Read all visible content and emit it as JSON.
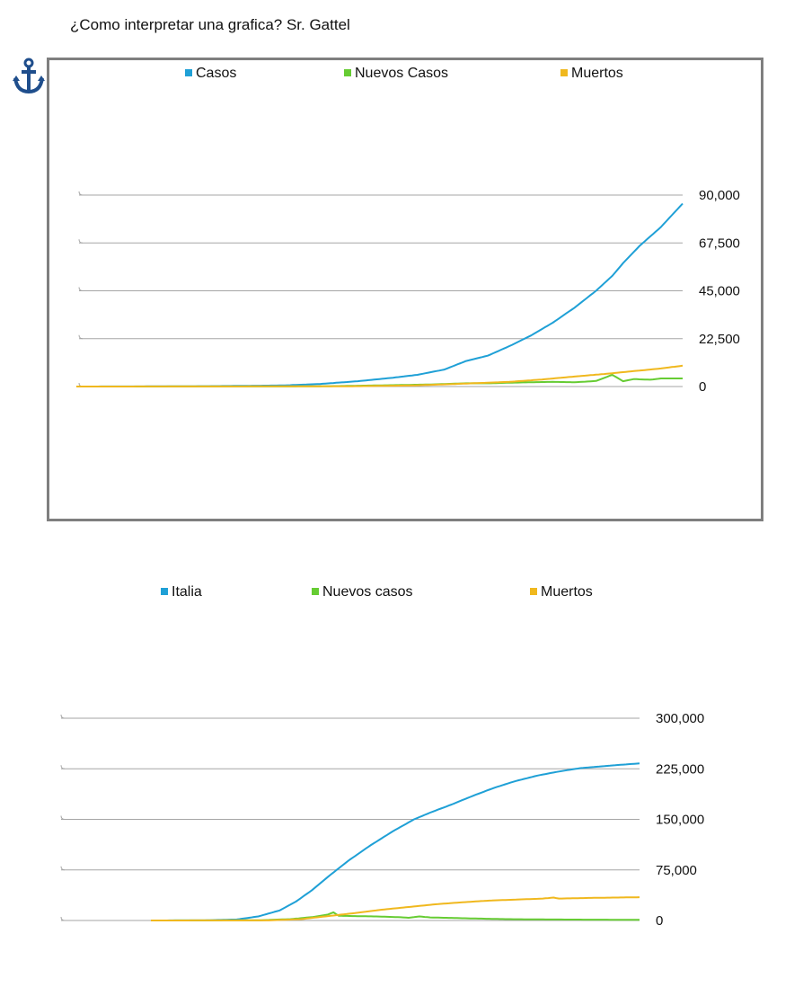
{
  "page_title": "¿Como interpretar una grafica? Sr. Gattel",
  "icon": "anchor-icon",
  "colors": {
    "blue": "#1fa0d6",
    "green": "#66cc33",
    "yellow": "#f0b81e",
    "grid": "#a6a6a6",
    "frame": "#7f7f7f"
  },
  "chart_data": [
    {
      "type": "line",
      "legend": [
        "Casos",
        "Nuevos Casos",
        "Muertos"
      ],
      "legend_position": "top",
      "y_ticks": [
        "90,000",
        "67,500",
        "45,000",
        "22,500",
        "0"
      ],
      "y_tick_values": [
        90000,
        67500,
        45000,
        22500,
        0
      ],
      "ylim": [
        0,
        90000
      ],
      "x_points": 100,
      "grid": true,
      "series": [
        {
          "name": "Casos",
          "color": "#1fa0d6",
          "keypoints": [
            [
              0,
              0
            ],
            [
              20,
              100
            ],
            [
              30,
              300
            ],
            [
              38,
              500
            ],
            [
              45,
              1200
            ],
            [
              52,
              2500
            ],
            [
              58,
              4000
            ],
            [
              63,
              5500
            ],
            [
              68,
              8000
            ],
            [
              72,
              12000
            ],
            [
              76,
              14500
            ],
            [
              80,
              19000
            ],
            [
              84,
              24000
            ],
            [
              88,
              30000
            ],
            [
              92,
              37000
            ],
            [
              96,
              45000
            ],
            [
              99,
              52000
            ],
            [
              101,
              58000
            ],
            [
              104,
              66000
            ],
            [
              108,
              75000
            ],
            [
              112,
              86000
            ]
          ]
        },
        {
          "name": "Nuevos Casos",
          "color": "#66cc33",
          "keypoints": [
            [
              0,
              0
            ],
            [
              40,
              50
            ],
            [
              48,
              200
            ],
            [
              55,
              500
            ],
            [
              60,
              700
            ],
            [
              66,
              1000
            ],
            [
              72,
              1500
            ],
            [
              76,
              1500
            ],
            [
              80,
              1800
            ],
            [
              84,
              2000
            ],
            [
              88,
              2200
            ],
            [
              92,
              2000
            ],
            [
              96,
              2600
            ],
            [
              99,
              5500
            ],
            [
              101,
              2500
            ],
            [
              103,
              3500
            ],
            [
              106,
              3200
            ],
            [
              108,
              3800
            ],
            [
              112,
              3800
            ]
          ]
        },
        {
          "name": "Muertos",
          "color": "#f0b81e",
          "keypoints": [
            [
              0,
              0
            ],
            [
              50,
              100
            ],
            [
              62,
              500
            ],
            [
              70,
              1200
            ],
            [
              80,
              2200
            ],
            [
              86,
              3300
            ],
            [
              92,
              4700
            ],
            [
              98,
              6000
            ],
            [
              104,
              7500
            ],
            [
              108,
              8500
            ],
            [
              112,
              9800
            ]
          ]
        }
      ]
    },
    {
      "type": "line",
      "legend": [
        "Italia",
        "Nuevos casos",
        "Muertos"
      ],
      "legend_position": "top",
      "y_ticks": [
        "300,000",
        "225,000",
        "150,000",
        "75,000",
        "0"
      ],
      "y_tick_values": [
        300000,
        225000,
        150000,
        75000,
        0
      ],
      "ylim": [
        0,
        300000
      ],
      "grid": true,
      "series": [
        {
          "name": "Italia",
          "color": "#1fa0d6",
          "keypoints": [
            [
              0,
              0
            ],
            [
              10,
              200
            ],
            [
              16,
              1500
            ],
            [
              20,
              6000
            ],
            [
              24,
              15000
            ],
            [
              27,
              28000
            ],
            [
              30,
              45000
            ],
            [
              33,
              65000
            ],
            [
              37,
              90000
            ],
            [
              41,
              112000
            ],
            [
              45,
              132000
            ],
            [
              49,
              150000
            ],
            [
              52,
              160000
            ],
            [
              56,
              172000
            ],
            [
              60,
              185000
            ],
            [
              64,
              197000
            ],
            [
              68,
              207000
            ],
            [
              72,
              215000
            ],
            [
              76,
              221000
            ],
            [
              80,
              226000
            ],
            [
              86,
              230000
            ],
            [
              91,
              233000
            ]
          ]
        },
        {
          "name": "Nuevos casos",
          "color": "#66cc33",
          "keypoints": [
            [
              0,
              0
            ],
            [
              20,
              300
            ],
            [
              26,
              2000
            ],
            [
              30,
              5000
            ],
            [
              33,
              9000
            ],
            [
              34,
              12000
            ],
            [
              35,
              7000
            ],
            [
              38,
              6500
            ],
            [
              42,
              6000
            ],
            [
              46,
              5000
            ],
            [
              48,
              4000
            ],
            [
              50,
              6000
            ],
            [
              52,
              4500
            ],
            [
              56,
              3800
            ],
            [
              60,
              3000
            ],
            [
              66,
              2000
            ],
            [
              74,
              1500
            ],
            [
              82,
              1200
            ],
            [
              91,
              1000
            ]
          ]
        },
        {
          "name": "Muertos",
          "color": "#f0b81e",
          "keypoints": [
            [
              0,
              0
            ],
            [
              22,
              200
            ],
            [
              28,
              2000
            ],
            [
              33,
              6500
            ],
            [
              38,
              11000
            ],
            [
              43,
              16000
            ],
            [
              48,
              20000
            ],
            [
              53,
              24000
            ],
            [
              58,
              27000
            ],
            [
              63,
              29500
            ],
            [
              68,
              31000
            ],
            [
              73,
              32500
            ],
            [
              75,
              34000
            ],
            [
              76,
              32500
            ],
            [
              82,
              33500
            ],
            [
              91,
              34500
            ]
          ]
        }
      ]
    }
  ]
}
